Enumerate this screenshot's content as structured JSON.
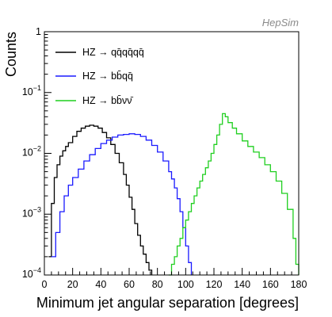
{
  "watermark": "HepSim",
  "chart_data": {
    "type": "line",
    "title": "",
    "xlabel": "Minimum jet angular separation [degrees]",
    "ylabel": "Counts",
    "xlim": [
      0,
      180
    ],
    "ylim": [
      0.0001,
      1
    ],
    "yscale": "log",
    "grid": false,
    "legend_position": "top-left",
    "x_ticks": [
      0,
      20,
      40,
      60,
      80,
      100,
      120,
      140,
      160,
      180
    ],
    "x_tick_labels": [
      "0",
      "20",
      "40",
      "60",
      "80",
      "100",
      "120",
      "140",
      "160",
      "180"
    ],
    "y_ticks": [
      0.0001,
      0.001,
      0.01,
      0.1,
      1
    ],
    "y_tick_labels": [
      {
        "base": "10",
        "exp": "−4"
      },
      {
        "base": "10",
        "exp": "−3"
      },
      {
        "base": "10",
        "exp": "−2"
      },
      {
        "base": "10",
        "exp": "−1"
      },
      {
        "base": "1",
        "exp": ""
      }
    ],
    "series": [
      {
        "name": "HZ → qq̄qq̄qq̄",
        "color": "#000000",
        "x": [
          3,
          5,
          7,
          9,
          11,
          13,
          15,
          17,
          20,
          23,
          26,
          29,
          32,
          35,
          38,
          41,
          44,
          47,
          50,
          53,
          56,
          58,
          60,
          62,
          64,
          66,
          68,
          70,
          72,
          74,
          76
        ],
        "y": [
          0.0002,
          0.0015,
          0.004,
          0.0065,
          0.009,
          0.011,
          0.013,
          0.015,
          0.019,
          0.023,
          0.026,
          0.028,
          0.029,
          0.028,
          0.026,
          0.022,
          0.018,
          0.014,
          0.01,
          0.007,
          0.0045,
          0.003,
          0.0019,
          0.0012,
          0.0007,
          0.00045,
          0.0003,
          0.00022,
          0.00016,
          0.00012,
          0.0001
        ]
      },
      {
        "name": "HZ → bb̄qq̄",
        "color": "#1a1aff",
        "x": [
          5,
          8,
          11,
          14,
          17,
          20,
          24,
          28,
          32,
          36,
          40,
          44,
          48,
          52,
          56,
          60,
          64,
          68,
          72,
          76,
          80,
          84,
          88,
          90,
          92,
          94,
          96,
          98,
          100,
          102,
          104
        ],
        "y": [
          0.0002,
          0.0005,
          0.0011,
          0.002,
          0.003,
          0.004,
          0.0055,
          0.0075,
          0.0095,
          0.012,
          0.0145,
          0.0165,
          0.0185,
          0.02,
          0.0205,
          0.021,
          0.0205,
          0.019,
          0.0165,
          0.0135,
          0.0105,
          0.0075,
          0.005,
          0.0038,
          0.0027,
          0.0018,
          0.0011,
          0.0006,
          0.0003,
          0.00016,
          0.0001
        ]
      },
      {
        "name": "HZ → bb̄νν̄",
        "color": "#1fcf1f",
        "x": [
          88,
          90,
          92,
          94,
          96,
          98,
          100,
          102,
          104,
          106,
          108,
          110,
          112,
          114,
          116,
          118,
          120,
          122,
          124,
          126,
          128,
          130,
          133,
          136,
          140,
          144,
          148,
          152,
          156,
          160,
          164,
          168,
          172,
          176,
          178,
          180
        ],
        "y": [
          0.0001,
          0.00015,
          0.0002,
          0.0003,
          0.0004,
          0.0006,
          0.0008,
          0.0011,
          0.0015,
          0.002,
          0.0027,
          0.0035,
          0.0045,
          0.0058,
          0.0075,
          0.01,
          0.014,
          0.02,
          0.03,
          0.045,
          0.04,
          0.032,
          0.026,
          0.021,
          0.016,
          0.013,
          0.0105,
          0.0085,
          0.0065,
          0.005,
          0.0035,
          0.0022,
          0.0012,
          0.0004,
          0.00015,
          0.0001
        ]
      }
    ]
  }
}
